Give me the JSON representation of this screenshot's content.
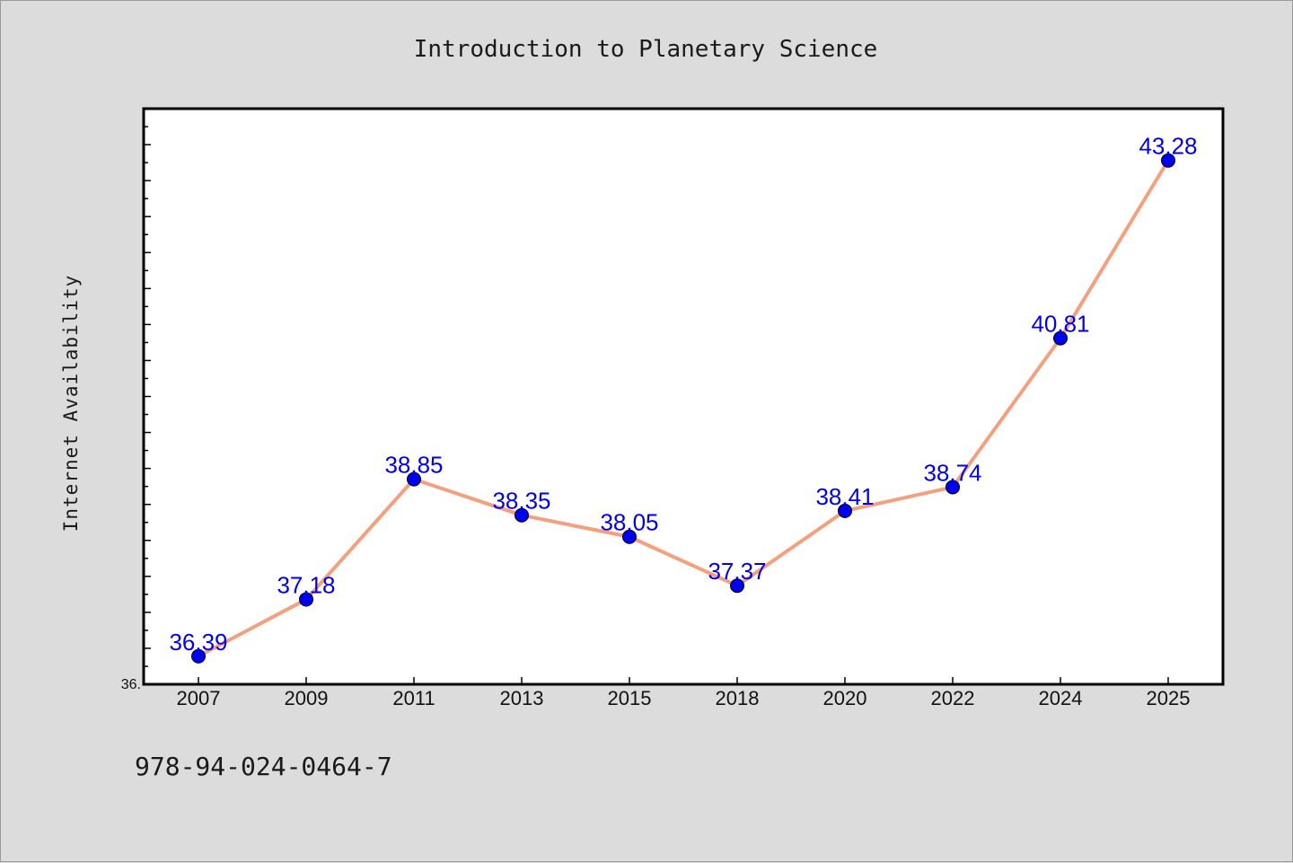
{
  "chart_data": {
    "type": "line",
    "title": "Introduction to Planetary Science",
    "xlabel": "",
    "ylabel": "Internet Availability",
    "categories": [
      "2007",
      "2009",
      "2011",
      "2013",
      "2015",
      "2018",
      "2020",
      "2022",
      "2024",
      "2025"
    ],
    "series": [
      {
        "values": [
          36.39,
          37.18,
          38.85,
          38.35,
          38.05,
          37.37,
          38.41,
          38.74,
          40.81,
          43.28
        ],
        "labels": [
          "36.39",
          "37.18",
          "38.85",
          "38.35",
          "38.05",
          "37.37",
          "38.41",
          "38.74",
          "40.81",
          "43.28"
        ],
        "line_color": "#f4a07e",
        "marker_color": "#0000ee",
        "label_color": "#0000ee"
      }
    ],
    "ylim": [
      36.0,
      44.0
    ],
    "y_tick_label": "36.",
    "grid": false,
    "legend": "none"
  },
  "footer": {
    "isbn": "978-94-024-0464-7"
  },
  "colors": {
    "background": "#dcdcdc",
    "plot_background": "#ffffff",
    "axis": "#000000"
  }
}
